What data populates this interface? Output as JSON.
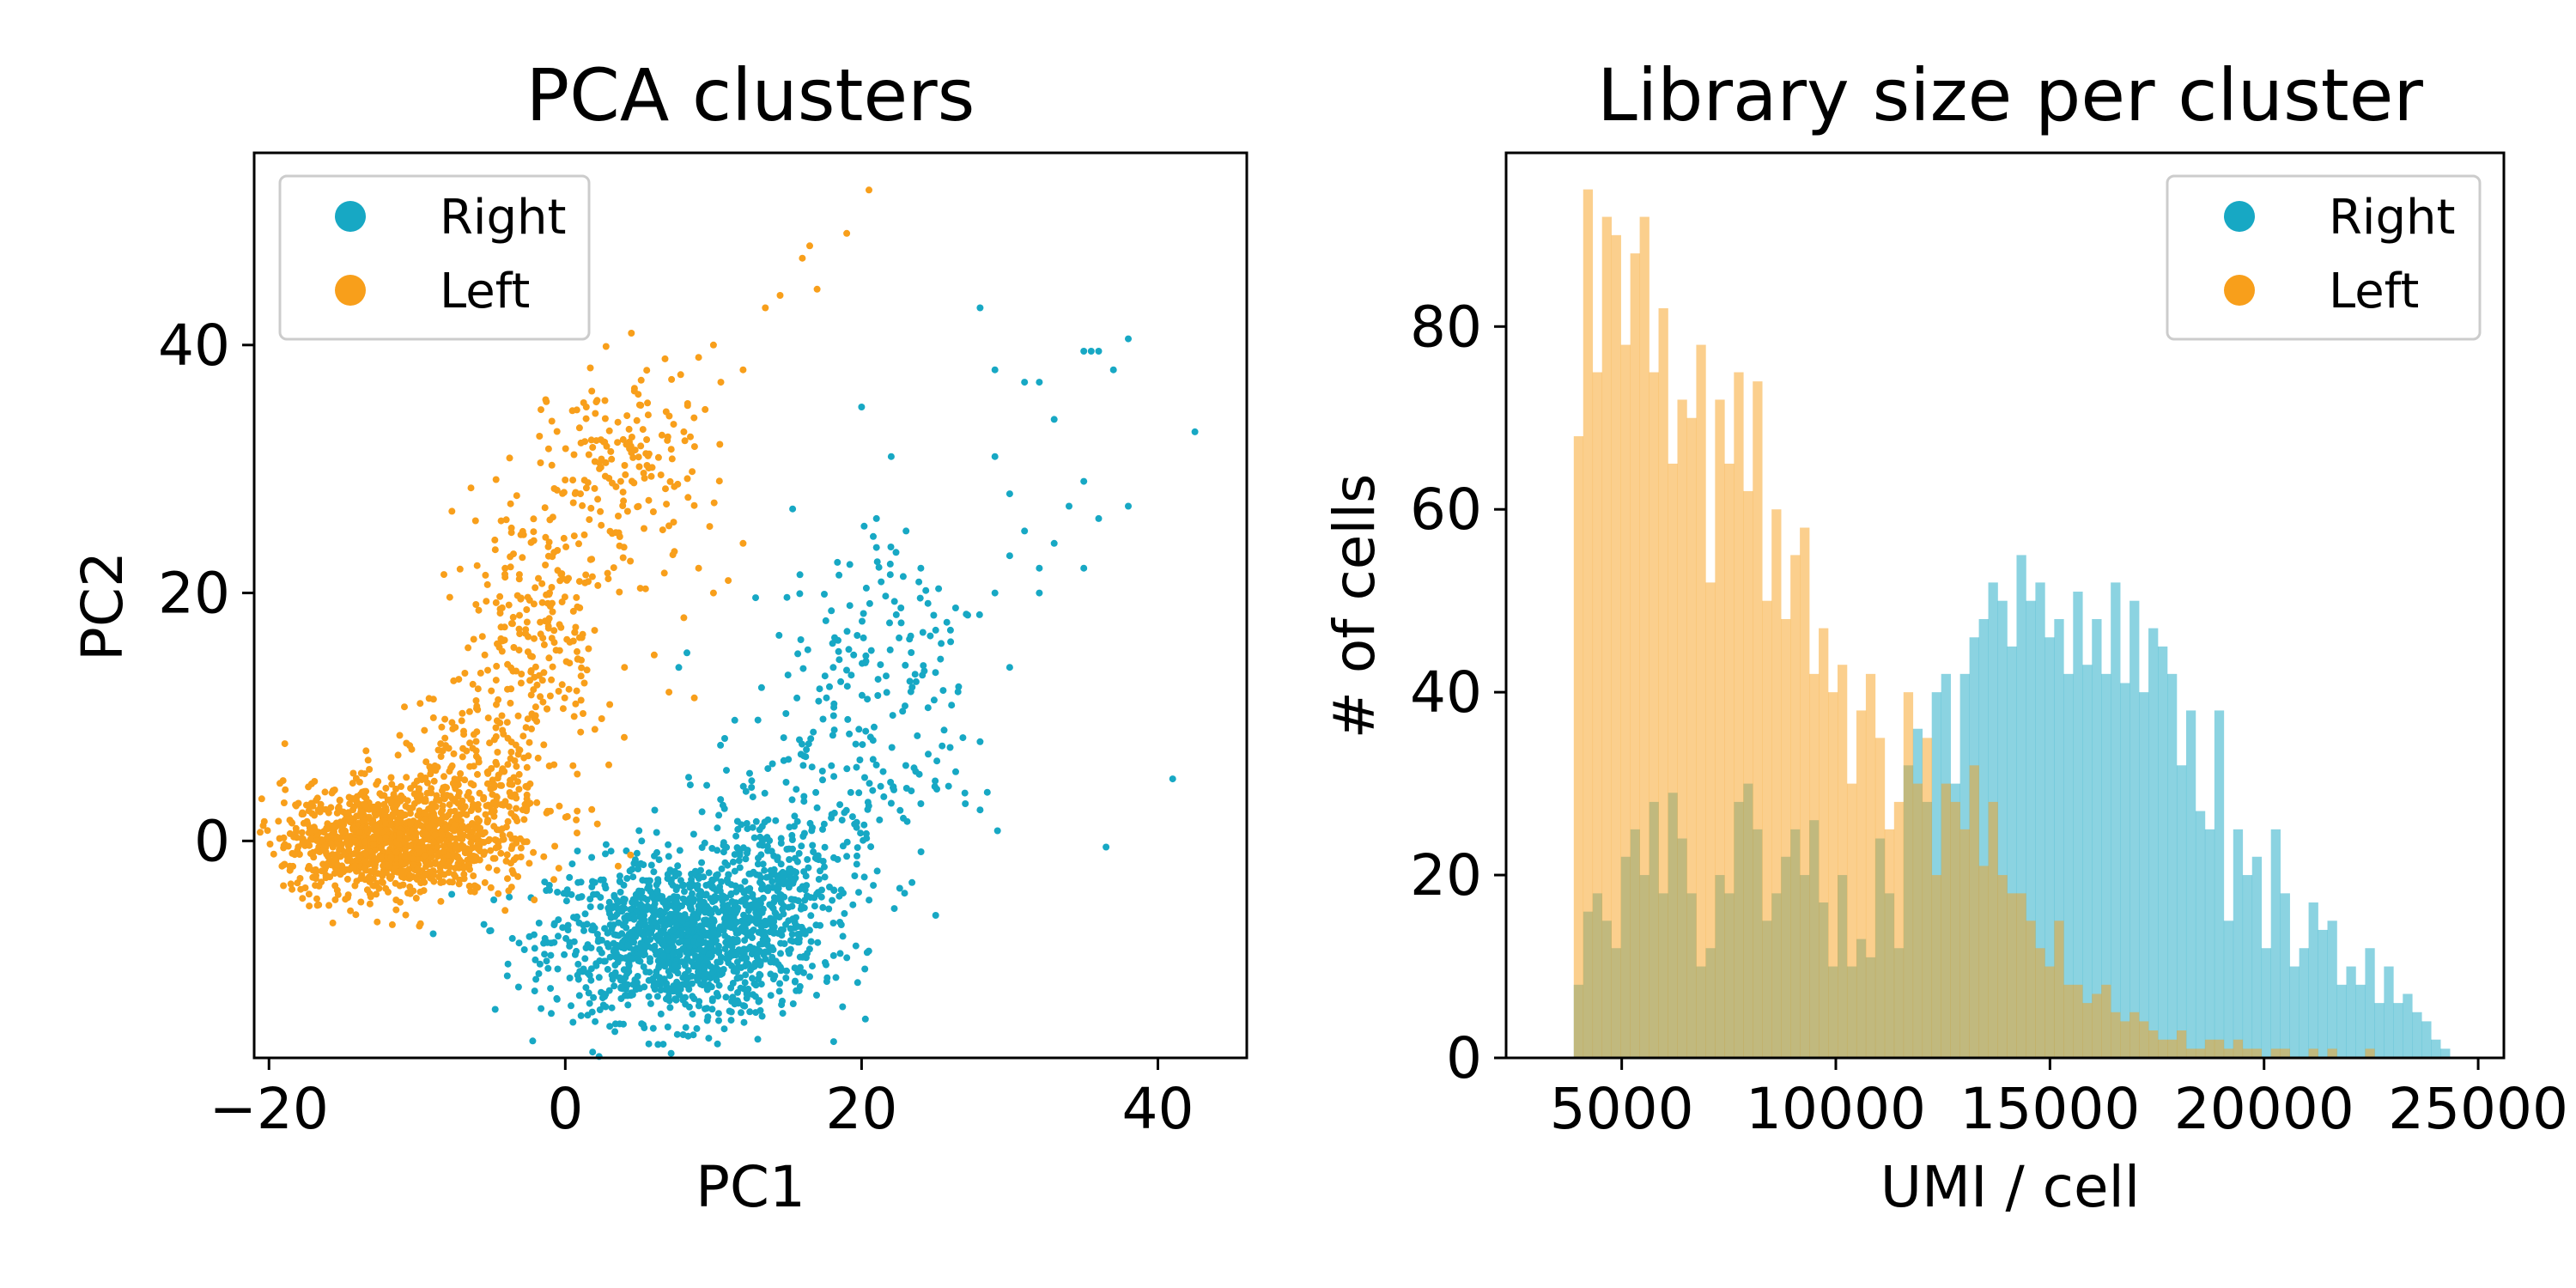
{
  "colors": {
    "right": "#17a8c4",
    "left": "#f89f1b"
  },
  "chart_data": [
    {
      "type": "scatter",
      "title": "PCA clusters",
      "xlabel": "PC1",
      "ylabel": "PC2",
      "xlim": [
        -21,
        46
      ],
      "ylim": [
        -17.5,
        55.5
      ],
      "xticks": [
        -20,
        0,
        20,
        40
      ],
      "xtick_labels": [
        "−20",
        "0",
        "20",
        "40"
      ],
      "yticks": [
        0,
        20,
        40
      ],
      "ytick_labels": [
        "0",
        "20",
        "40"
      ],
      "grid": false,
      "legend_position": "top-left",
      "series": [
        {
          "name": "Right",
          "color": "#17a8c4",
          "clusters": [
            {
              "center": [
                8,
                -8
              ],
              "spread": [
                4.5,
                3.2
              ],
              "count": 1300
            },
            {
              "center": [
                14,
                -3
              ],
              "spread": [
                3,
                3
              ],
              "count": 220
            },
            {
              "center": [
                18,
                6
              ],
              "spread": [
                4,
                5
              ],
              "count": 160
            },
            {
              "center": [
                22,
                17
              ],
              "spread": [
                3.5,
                5
              ],
              "count": 90
            }
          ],
          "points": [
            [
              28,
              43
            ],
            [
              29,
              38
            ],
            [
              31,
              37
            ],
            [
              32,
              37
            ],
            [
              33,
              34
            ],
            [
              35,
              39.5
            ],
            [
              35.5,
              39.5
            ],
            [
              36,
              39.5
            ],
            [
              37,
              38
            ],
            [
              38,
              40.5
            ],
            [
              42.5,
              33
            ],
            [
              29,
              31
            ],
            [
              30,
              28
            ],
            [
              34,
              27
            ],
            [
              35,
              29
            ],
            [
              36,
              26
            ],
            [
              31,
              25
            ],
            [
              33,
              24
            ],
            [
              30,
              23
            ],
            [
              32,
              22
            ],
            [
              29,
              20
            ],
            [
              32,
              20
            ],
            [
              35,
              22
            ],
            [
              38,
              27
            ],
            [
              30,
              14
            ],
            [
              28,
              8
            ],
            [
              26,
              17
            ],
            [
              25,
              17
            ],
            [
              27,
              3
            ],
            [
              28,
              2.5
            ],
            [
              41,
              5
            ],
            [
              36.5,
              -0.5
            ],
            [
              25,
              -6
            ],
            [
              24,
              3
            ],
            [
              24.5,
              7
            ],
            [
              23,
              25
            ],
            [
              24,
              22
            ],
            [
              22,
              31
            ],
            [
              21,
              26
            ],
            [
              20,
              35
            ]
          ]
        },
        {
          "name": "Left",
          "color": "#f89f1b",
          "clusters": [
            {
              "center": [
                -12,
                0
              ],
              "spread": [
                3.5,
                2.2
              ],
              "count": 1100
            },
            {
              "center": [
                -6,
                4
              ],
              "spread": [
                3,
                3.5
              ],
              "count": 300
            },
            {
              "center": [
                -2,
                17
              ],
              "spread": [
                2.5,
                6
              ],
              "count": 240
            },
            {
              "center": [
                4,
                30
              ],
              "spread": [
                2.5,
                4
              ],
              "count": 170
            }
          ],
          "points": [
            [
              10,
              40
            ],
            [
              12,
              38
            ],
            [
              10.5,
              37
            ],
            [
              9,
              39
            ],
            [
              8,
              33
            ],
            [
              13.5,
              43
            ],
            [
              14.5,
              44
            ],
            [
              16,
              47
            ],
            [
              16.5,
              48
            ],
            [
              17,
              44.5
            ],
            [
              19,
              49
            ],
            [
              20.5,
              52.5
            ],
            [
              9,
              22
            ],
            [
              10,
              20
            ],
            [
              8,
              18
            ],
            [
              6,
              15
            ],
            [
              4,
              14
            ],
            [
              3,
              11
            ],
            [
              2,
              9
            ],
            [
              7,
              12
            ],
            [
              11,
              21
            ],
            [
              12,
              24
            ]
          ]
        }
      ]
    },
    {
      "type": "bar",
      "subtype": "histogram",
      "title": "Library size per cluster",
      "xlabel": "UMI / cell",
      "ylabel": "# of cells",
      "xlim": [
        2300,
        25600
      ],
      "ylim": [
        0,
        99
      ],
      "xticks": [
        5000,
        10000,
        15000,
        20000,
        25000
      ],
      "xtick_labels": [
        "5000",
        "10000",
        "15000",
        "20000",
        "25000"
      ],
      "yticks": [
        0,
        20,
        40,
        60,
        80
      ],
      "ytick_labels": [
        "0",
        "20",
        "40",
        "60",
        "80"
      ],
      "bin_start": 3000,
      "bin_width": 220,
      "grid": false,
      "legend_position": "top-right",
      "series": [
        {
          "name": "Right",
          "color": "#17a8c4",
          "opacity": 0.5,
          "values": [
            0,
            0,
            0,
            0,
            8,
            16,
            18,
            15,
            12,
            22,
            25,
            20,
            28,
            18,
            29,
            24,
            18,
            10,
            12,
            20,
            18,
            28,
            30,
            25,
            15,
            18,
            22,
            25,
            20,
            26,
            17,
            10,
            20,
            10,
            13,
            11,
            24,
            18,
            12,
            32,
            36,
            28,
            40,
            42,
            30,
            42,
            46,
            48,
            52,
            50,
            45,
            55,
            50,
            52,
            46,
            48,
            42,
            51,
            43,
            48,
            42,
            52,
            41,
            50,
            40,
            47,
            45,
            42,
            32,
            38,
            27,
            25,
            38,
            15,
            25,
            20,
            22,
            12,
            25,
            18,
            10,
            12,
            17,
            14,
            15,
            8,
            10,
            8,
            12,
            6,
            10,
            6,
            7,
            5,
            4,
            2,
            1,
            0
          ],
          "offset": 0
        },
        {
          "name": "Left",
          "color": "#f89f1b",
          "opacity": 0.5,
          "values": [
            0,
            0,
            0,
            0,
            68,
            95,
            75,
            92,
            90,
            78,
            88,
            92,
            75,
            82,
            65,
            72,
            70,
            78,
            52,
            72,
            65,
            75,
            62,
            74,
            50,
            60,
            48,
            55,
            58,
            42,
            47,
            40,
            43,
            30,
            38,
            42,
            35,
            25,
            28,
            40,
            30,
            35,
            20,
            30,
            28,
            25,
            32,
            21,
            28,
            20,
            18,
            18,
            15,
            12,
            10,
            15,
            8,
            8,
            6,
            7,
            8,
            5,
            4,
            5,
            4,
            3,
            2,
            2,
            3,
            1,
            1,
            2,
            2,
            1,
            2,
            1,
            1,
            0,
            1,
            1,
            0,
            0,
            1,
            0,
            1,
            0,
            0,
            0,
            1,
            0,
            0,
            0,
            0,
            0,
            0,
            0,
            0,
            0
          ],
          "offset": 0
        }
      ]
    }
  ],
  "legend": {
    "items": [
      "Right",
      "Left"
    ]
  }
}
